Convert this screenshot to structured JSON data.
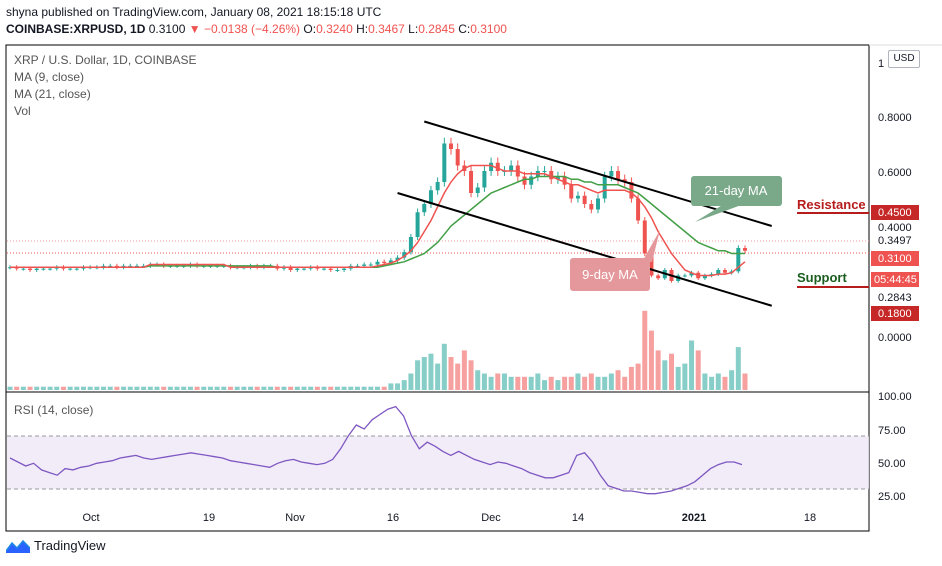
{
  "header": {
    "publisher": "shyna published on TradingView.com, January 08, 2021 18:15:18 UTC",
    "symbol": "COINBASE:XRPUSD, 1D",
    "last": "0.3100",
    "arrow": "▼",
    "change": "−0.0138 (−4.26%)",
    "o_label": "O:",
    "o": "0.3240",
    "h_label": "H:",
    "h": "0.3467",
    "l_label": "L:",
    "l": "0.2845",
    "c_label": "C:",
    "c": "0.3100"
  },
  "legend": {
    "title": "XRP / U.S. Dollar, 1D, COINBASE",
    "ma9": "MA (9, close)",
    "ma21": "MA (21, close)",
    "vol": "Vol",
    "rsi": "RSI (14, close)"
  },
  "currency_button": "USD",
  "footer": {
    "brand": "TradingView"
  },
  "colors": {
    "up": "#26a69a",
    "down": "#ef5350",
    "ma9": "#ef5350",
    "ma21": "#43a047",
    "rsi": "#7e57c2"
  },
  "chart_data": {
    "type": "candlestick",
    "y_axis_labels": [
      "1",
      "0.8000",
      "0.6000",
      "0.4000",
      "0.0000"
    ],
    "price_tags": [
      {
        "text": "0.4500",
        "bg": "#c62828"
      },
      {
        "text": "0.3497",
        "bg": "none"
      },
      {
        "text": "0.3100",
        "bg": "#ef5350"
      },
      {
        "text": "05:44:45",
        "bg": "#ef5350"
      },
      {
        "text": "0.2843",
        "bg": "none"
      },
      {
        "text": "0.1800",
        "bg": "#c62828"
      }
    ],
    "x_labels": [
      "Oct",
      "19",
      "Nov",
      "16",
      "Dec",
      "14",
      "2021",
      "18"
    ],
    "rsi_axis_labels": [
      "100.00",
      "75.00",
      "50.00",
      "25.00"
    ],
    "rsi_band": [
      30,
      70
    ],
    "annotations": {
      "ma21_label": "21-day MA",
      "ma9_label": "9-day MA",
      "resistance": "Resistance",
      "support": "Support"
    },
    "resistance_level": 0.45,
    "support_level": 0.18,
    "trend_channel": {
      "upper": [
        {
          "date": "2020-11-21",
          "price": 0.78
        },
        {
          "date": "2021-01-12",
          "price": 0.4
        }
      ],
      "lower": [
        {
          "date": "2020-11-17",
          "price": 0.52
        },
        {
          "date": "2021-01-12",
          "price": 0.11
        }
      ]
    },
    "closes": [
      0.25,
      0.245,
      0.245,
      0.24,
      0.245,
      0.245,
      0.245,
      0.25,
      0.245,
      0.245,
      0.245,
      0.25,
      0.25,
      0.25,
      0.255,
      0.255,
      0.25,
      0.255,
      0.255,
      0.255,
      0.255,
      0.26,
      0.26,
      0.255,
      0.255,
      0.255,
      0.255,
      0.26,
      0.255,
      0.255,
      0.255,
      0.255,
      0.255,
      0.25,
      0.25,
      0.25,
      0.255,
      0.25,
      0.255,
      0.255,
      0.245,
      0.25,
      0.24,
      0.245,
      0.245,
      0.25,
      0.245,
      0.245,
      0.24,
      0.24,
      0.245,
      0.255,
      0.255,
      0.26,
      0.26,
      0.27,
      0.265,
      0.275,
      0.285,
      0.305,
      0.36,
      0.45,
      0.48,
      0.53,
      0.56,
      0.7,
      0.68,
      0.62,
      0.6,
      0.52,
      0.54,
      0.6,
      0.63,
      0.6,
      0.6,
      0.62,
      0.58,
      0.55,
      0.58,
      0.6,
      0.6,
      0.57,
      0.58,
      0.55,
      0.5,
      0.51,
      0.48,
      0.46,
      0.5,
      0.58,
      0.6,
      0.57,
      0.56,
      0.5,
      0.42,
      0.3,
      0.22,
      0.21,
      0.24,
      0.2,
      0.22,
      0.22,
      0.23,
      0.21,
      0.22,
      0.225,
      0.24,
      0.23,
      0.235,
      0.32,
      0.31
    ],
    "ma9": [
      0.25,
      0.25,
      0.25,
      0.25,
      0.25,
      0.25,
      0.25,
      0.25,
      0.25,
      0.25,
      0.25,
      0.25,
      0.25,
      0.25,
      0.25,
      0.25,
      0.25,
      0.25,
      0.25,
      0.25,
      0.25,
      0.26,
      0.26,
      0.26,
      0.26,
      0.26,
      0.26,
      0.26,
      0.26,
      0.26,
      0.26,
      0.26,
      0.26,
      0.25,
      0.25,
      0.25,
      0.25,
      0.25,
      0.25,
      0.25,
      0.25,
      0.25,
      0.25,
      0.25,
      0.25,
      0.25,
      0.25,
      0.25,
      0.25,
      0.25,
      0.25,
      0.25,
      0.25,
      0.25,
      0.25,
      0.255,
      0.26,
      0.265,
      0.275,
      0.29,
      0.31,
      0.34,
      0.38,
      0.42,
      0.47,
      0.52,
      0.56,
      0.59,
      0.61,
      0.62,
      0.62,
      0.62,
      0.62,
      0.61,
      0.6,
      0.6,
      0.6,
      0.59,
      0.59,
      0.59,
      0.59,
      0.58,
      0.57,
      0.56,
      0.55,
      0.55,
      0.54,
      0.53,
      0.52,
      0.53,
      0.53,
      0.53,
      0.53,
      0.52,
      0.5,
      0.47,
      0.43,
      0.38,
      0.34,
      0.3,
      0.27,
      0.24,
      0.23,
      0.22,
      0.22,
      0.22,
      0.225,
      0.225,
      0.23,
      0.25,
      0.27
    ],
    "ma21": [
      0.25,
      0.25,
      0.25,
      0.25,
      0.25,
      0.25,
      0.25,
      0.25,
      0.25,
      0.25,
      0.25,
      0.25,
      0.25,
      0.25,
      0.25,
      0.25,
      0.25,
      0.25,
      0.25,
      0.25,
      0.25,
      0.255,
      0.255,
      0.255,
      0.255,
      0.255,
      0.255,
      0.255,
      0.255,
      0.255,
      0.255,
      0.255,
      0.255,
      0.255,
      0.255,
      0.255,
      0.255,
      0.255,
      0.255,
      0.255,
      0.25,
      0.25,
      0.25,
      0.25,
      0.25,
      0.25,
      0.25,
      0.25,
      0.25,
      0.25,
      0.25,
      0.25,
      0.25,
      0.25,
      0.25,
      0.25,
      0.255,
      0.26,
      0.265,
      0.27,
      0.28,
      0.29,
      0.3,
      0.32,
      0.34,
      0.37,
      0.4,
      0.42,
      0.44,
      0.46,
      0.48,
      0.5,
      0.52,
      0.53,
      0.54,
      0.55,
      0.56,
      0.57,
      0.57,
      0.58,
      0.58,
      0.58,
      0.58,
      0.58,
      0.57,
      0.57,
      0.56,
      0.56,
      0.55,
      0.55,
      0.55,
      0.55,
      0.54,
      0.53,
      0.52,
      0.5,
      0.48,
      0.46,
      0.44,
      0.42,
      0.4,
      0.38,
      0.36,
      0.34,
      0.33,
      0.32,
      0.31,
      0.31,
      0.3,
      0.3,
      0.3
    ],
    "volumes": [
      1,
      1,
      1,
      1,
      1,
      1,
      1,
      1,
      1,
      1,
      1,
      1,
      1,
      1,
      1,
      1,
      1,
      1,
      1,
      1,
      1,
      1,
      1,
      1,
      1,
      1,
      1,
      1,
      1,
      1,
      1,
      1,
      1,
      1,
      1,
      1,
      1,
      1,
      1,
      1,
      1,
      1,
      1,
      1,
      1,
      1,
      1,
      1,
      1,
      1,
      1,
      1,
      1,
      1,
      1,
      1,
      1,
      2,
      2,
      3,
      5,
      9,
      10,
      11,
      8,
      14,
      10,
      8,
      12,
      9,
      6,
      5,
      4,
      5,
      5,
      4,
      4,
      4,
      4,
      5,
      3,
      4,
      3,
      4,
      4,
      5,
      4,
      5,
      4,
      4,
      5,
      6,
      4,
      7,
      8,
      24,
      18,
      12,
      9,
      11,
      7,
      8,
      15,
      12,
      5,
      4,
      5,
      4,
      6,
      13,
      5
    ],
    "rsi": [
      53,
      50,
      47,
      49,
      44,
      42,
      40,
      45,
      44,
      46,
      47,
      49,
      50,
      51,
      53,
      54,
      55,
      53,
      52,
      53,
      54,
      55,
      56,
      57,
      56,
      55,
      54,
      53,
      51,
      50,
      49,
      48,
      47,
      46,
      49,
      51,
      52,
      50,
      49,
      48,
      49,
      52,
      60,
      70,
      78,
      75,
      82,
      86,
      90,
      92,
      85,
      70,
      60,
      65,
      62,
      58,
      55,
      58,
      55,
      52,
      50,
      48,
      50,
      49,
      47,
      45,
      42,
      40,
      38,
      38,
      40,
      42,
      55,
      57,
      50,
      40,
      32,
      30,
      28,
      28,
      27,
      26,
      26,
      27,
      28,
      30,
      32,
      35,
      40,
      45,
      48,
      50,
      50,
      48
    ]
  }
}
